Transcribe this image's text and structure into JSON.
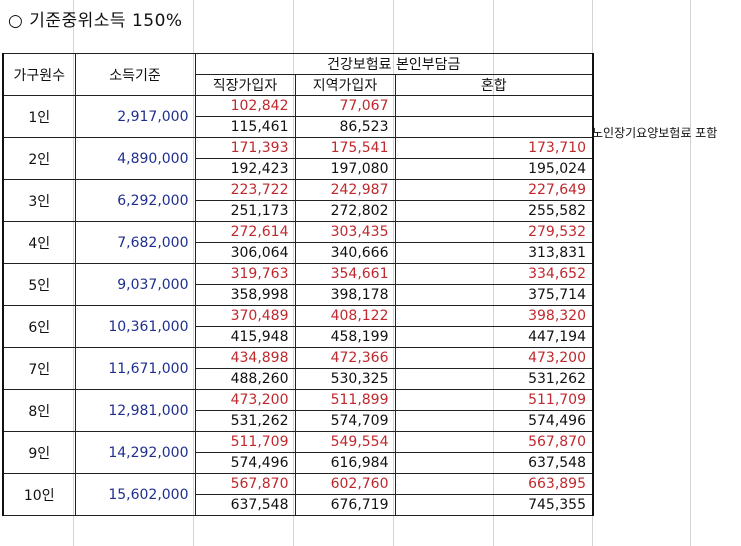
{
  "title": "○ 기준중위소득 150%",
  "side_note": "노인장기요양보험료 포함",
  "headers": {
    "members": "가구원수",
    "income": "소득기준",
    "insurance": "건강보험료 본인부담금",
    "employee": "직장가입자",
    "regional": "지역가입자",
    "mixed": "혼합"
  },
  "rows": [
    {
      "members": "1인",
      "income": "2,917,000",
      "emp": [
        "102,842",
        "115,461"
      ],
      "reg": [
        "77,067",
        "86,523"
      ],
      "mix": [
        "",
        ""
      ]
    },
    {
      "members": "2인",
      "income": "4,890,000",
      "emp": [
        "171,393",
        "192,423"
      ],
      "reg": [
        "175,541",
        "197,080"
      ],
      "mix": [
        "173,710",
        "195,024"
      ]
    },
    {
      "members": "3인",
      "income": "6,292,000",
      "emp": [
        "223,722",
        "251,173"
      ],
      "reg": [
        "242,987",
        "272,802"
      ],
      "mix": [
        "227,649",
        "255,582"
      ]
    },
    {
      "members": "4인",
      "income": "7,682,000",
      "emp": [
        "272,614",
        "306,064"
      ],
      "reg": [
        "303,435",
        "340,666"
      ],
      "mix": [
        "279,532",
        "313,831"
      ]
    },
    {
      "members": "5인",
      "income": "9,037,000",
      "emp": [
        "319,763",
        "358,998"
      ],
      "reg": [
        "354,661",
        "398,178"
      ],
      "mix": [
        "334,652",
        "375,714"
      ]
    },
    {
      "members": "6인",
      "income": "10,361,000",
      "emp": [
        "370,489",
        "415,948"
      ],
      "reg": [
        "408,122",
        "458,199"
      ],
      "mix": [
        "398,320",
        "447,194"
      ]
    },
    {
      "members": "7인",
      "income": "11,671,000",
      "emp": [
        "434,898",
        "488,260"
      ],
      "reg": [
        "472,366",
        "530,325"
      ],
      "mix": [
        "473,200",
        "531,262"
      ]
    },
    {
      "members": "8인",
      "income": "12,981,000",
      "emp": [
        "473,200",
        "531,262"
      ],
      "reg": [
        "511,899",
        "574,709"
      ],
      "mix": [
        "511,709",
        "574,496"
      ]
    },
    {
      "members": "9인",
      "income": "14,292,000",
      "emp": [
        "511,709",
        "574,496"
      ],
      "reg": [
        "549,554",
        "616,984"
      ],
      "mix": [
        "567,870",
        "637,548"
      ]
    },
    {
      "members": "10인",
      "income": "15,602,000",
      "emp": [
        "567,870",
        "637,548"
      ],
      "reg": [
        "602,760",
        "676,719"
      ],
      "mix": [
        "663,895",
        "745,355"
      ]
    }
  ],
  "colors": {
    "red_value": "#c0282d",
    "income_value": "#1f2f8f",
    "grid": "#d4d4d4"
  }
}
